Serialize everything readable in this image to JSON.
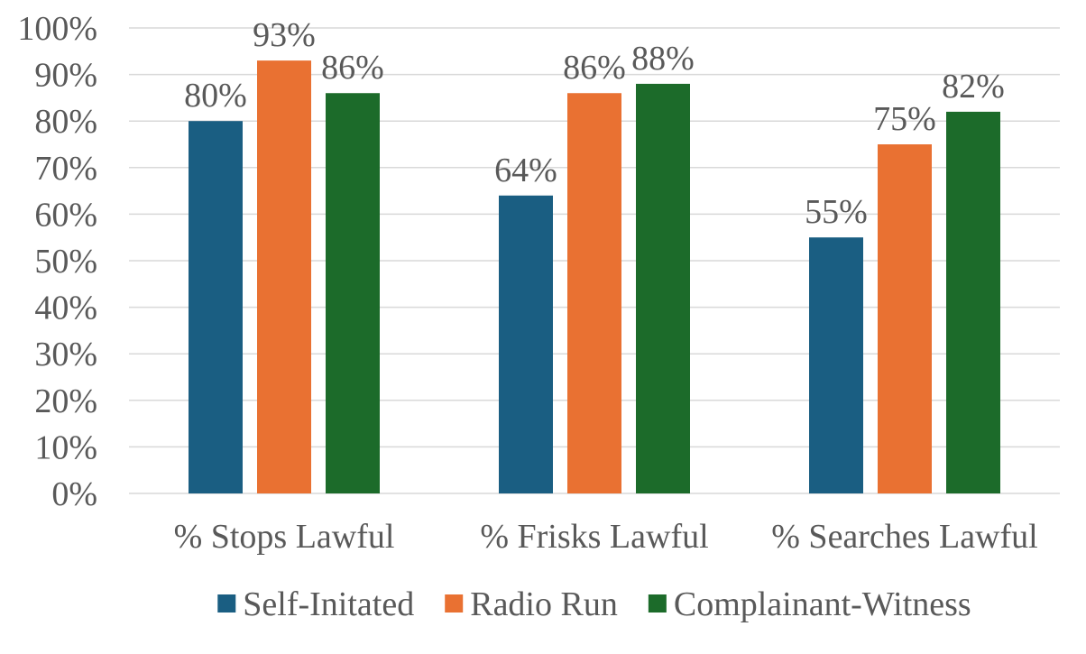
{
  "chart_data": {
    "type": "bar",
    "title": "",
    "xlabel": "",
    "ylabel": "",
    "categories": [
      "% Stops Lawful",
      "% Frisks Lawful",
      "% Searches Lawful"
    ],
    "series": [
      {
        "name": "Self-Initated",
        "values": [
          80,
          64,
          55
        ],
        "color": "#1a5e82"
      },
      {
        "name": "Radio Run",
        "values": [
          93,
          86,
          75
        ],
        "color": "#e97132"
      },
      {
        "name": "Complainant-Witness",
        "values": [
          86,
          88,
          82
        ],
        "color": "#1c6b2a"
      }
    ],
    "data_labels": [
      [
        "80%",
        "64%",
        "55%"
      ],
      [
        "93%",
        "86%",
        "75%"
      ],
      [
        "86%",
        "88%",
        "82%"
      ]
    ],
    "y_ticks": [
      0,
      10,
      20,
      30,
      40,
      50,
      60,
      70,
      80,
      90,
      100
    ],
    "y_tick_labels": [
      "0%",
      "10%",
      "20%",
      "30%",
      "40%",
      "50%",
      "60%",
      "70%",
      "80%",
      "90%",
      "100%"
    ],
    "ylim": [
      0,
      100
    ],
    "grid": true,
    "legend_position": "bottom",
    "colors": {
      "grid": "#d9d9d9",
      "axis": "#d9d9d9",
      "text": "#595959"
    }
  }
}
